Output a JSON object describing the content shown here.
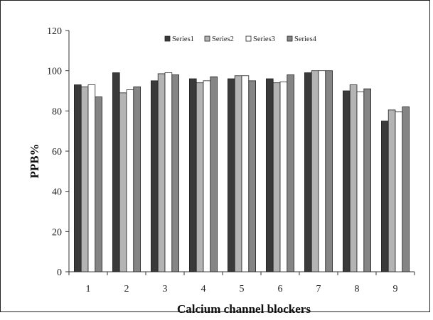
{
  "chart_data": {
    "type": "bar",
    "title": "",
    "xlabel": "Calcium channel blockers",
    "ylabel": "PPB%",
    "ylim": [
      0,
      120
    ],
    "yticks": [
      0,
      20,
      40,
      60,
      80,
      100,
      120
    ],
    "categories": [
      "1",
      "2",
      "3",
      "4",
      "5",
      "6",
      "7",
      "8",
      "9"
    ],
    "grid": false,
    "legend_position": "top",
    "series": [
      {
        "name": "Series1",
        "color": "#3a3a3a",
        "values": [
          93,
          99,
          95,
          96,
          96,
          96,
          99,
          90,
          75
        ]
      },
      {
        "name": "Series2",
        "color": "#b4b4b4",
        "values": [
          92,
          89,
          98.5,
          94,
          97.5,
          94,
          100,
          93,
          80.5
        ]
      },
      {
        "name": "Series3",
        "color": "#ffffff",
        "values": [
          93,
          90.5,
          99,
          95,
          97.5,
          94.5,
          100,
          89.5,
          79.5
        ]
      },
      {
        "name": "Series4",
        "color": "#858585",
        "values": [
          87,
          92,
          98,
          97,
          95,
          98,
          100,
          91,
          82
        ]
      }
    ]
  }
}
